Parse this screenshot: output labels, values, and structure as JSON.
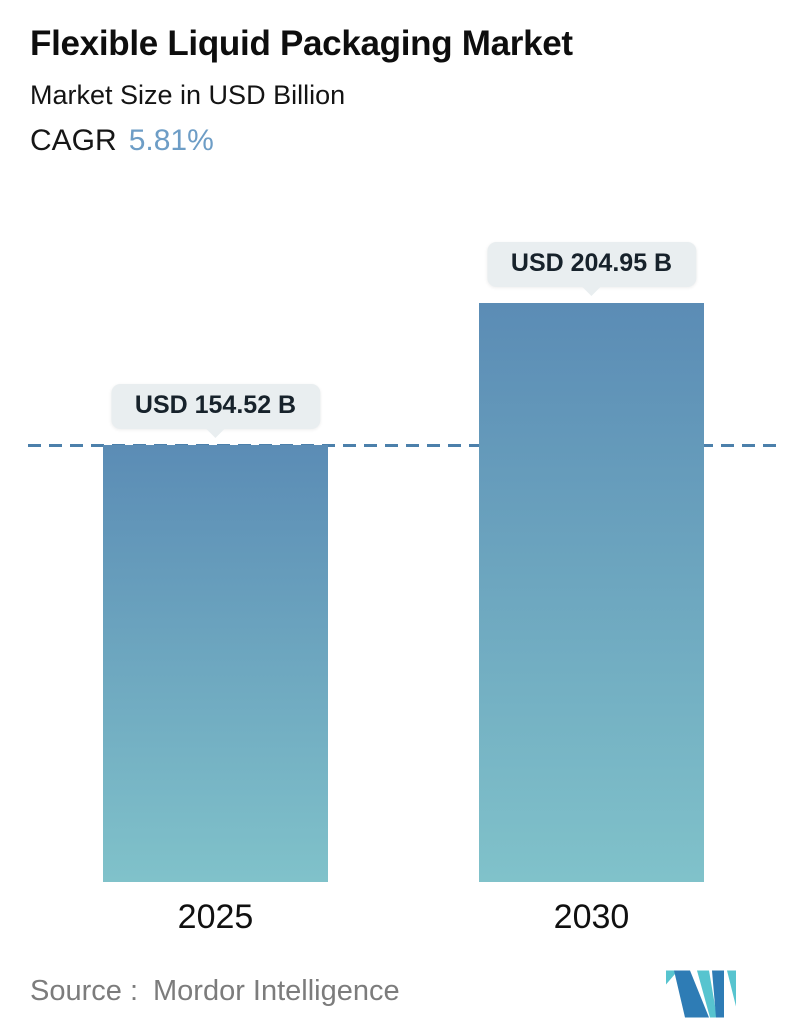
{
  "header": {
    "title": "Flexible Liquid Packaging Market",
    "subtitle": "Market Size in USD Billion",
    "cagr_label": "CAGR",
    "cagr_value": "5.81%",
    "cagr_value_color": "#6d9dc6"
  },
  "chart_data": {
    "type": "bar",
    "categories": [
      "2025",
      "2030"
    ],
    "values": [
      154.52,
      204.95
    ],
    "value_labels": [
      "USD 154.52 B",
      "USD 204.95 B"
    ],
    "title": "Flexible Liquid Packaging Market",
    "xlabel": "",
    "ylabel": "Market Size in USD Billion",
    "ylim": [
      0,
      220
    ],
    "grid": false,
    "legend": "none",
    "bar_gradient_top": "#5b8cb5",
    "bar_gradient_bottom": "#80c2ca",
    "label_bubble_bg": "#e9eef0",
    "reference_line": {
      "at_value": 154.52,
      "style": "dashed",
      "color": "#4c80ab"
    }
  },
  "footer": {
    "source_label": "Source :",
    "source_value": "Mordor Intelligence",
    "logo_name": "mordor-intelligence-logo",
    "logo_blue": "#2e7cb5",
    "logo_teal": "#57c4cf"
  }
}
